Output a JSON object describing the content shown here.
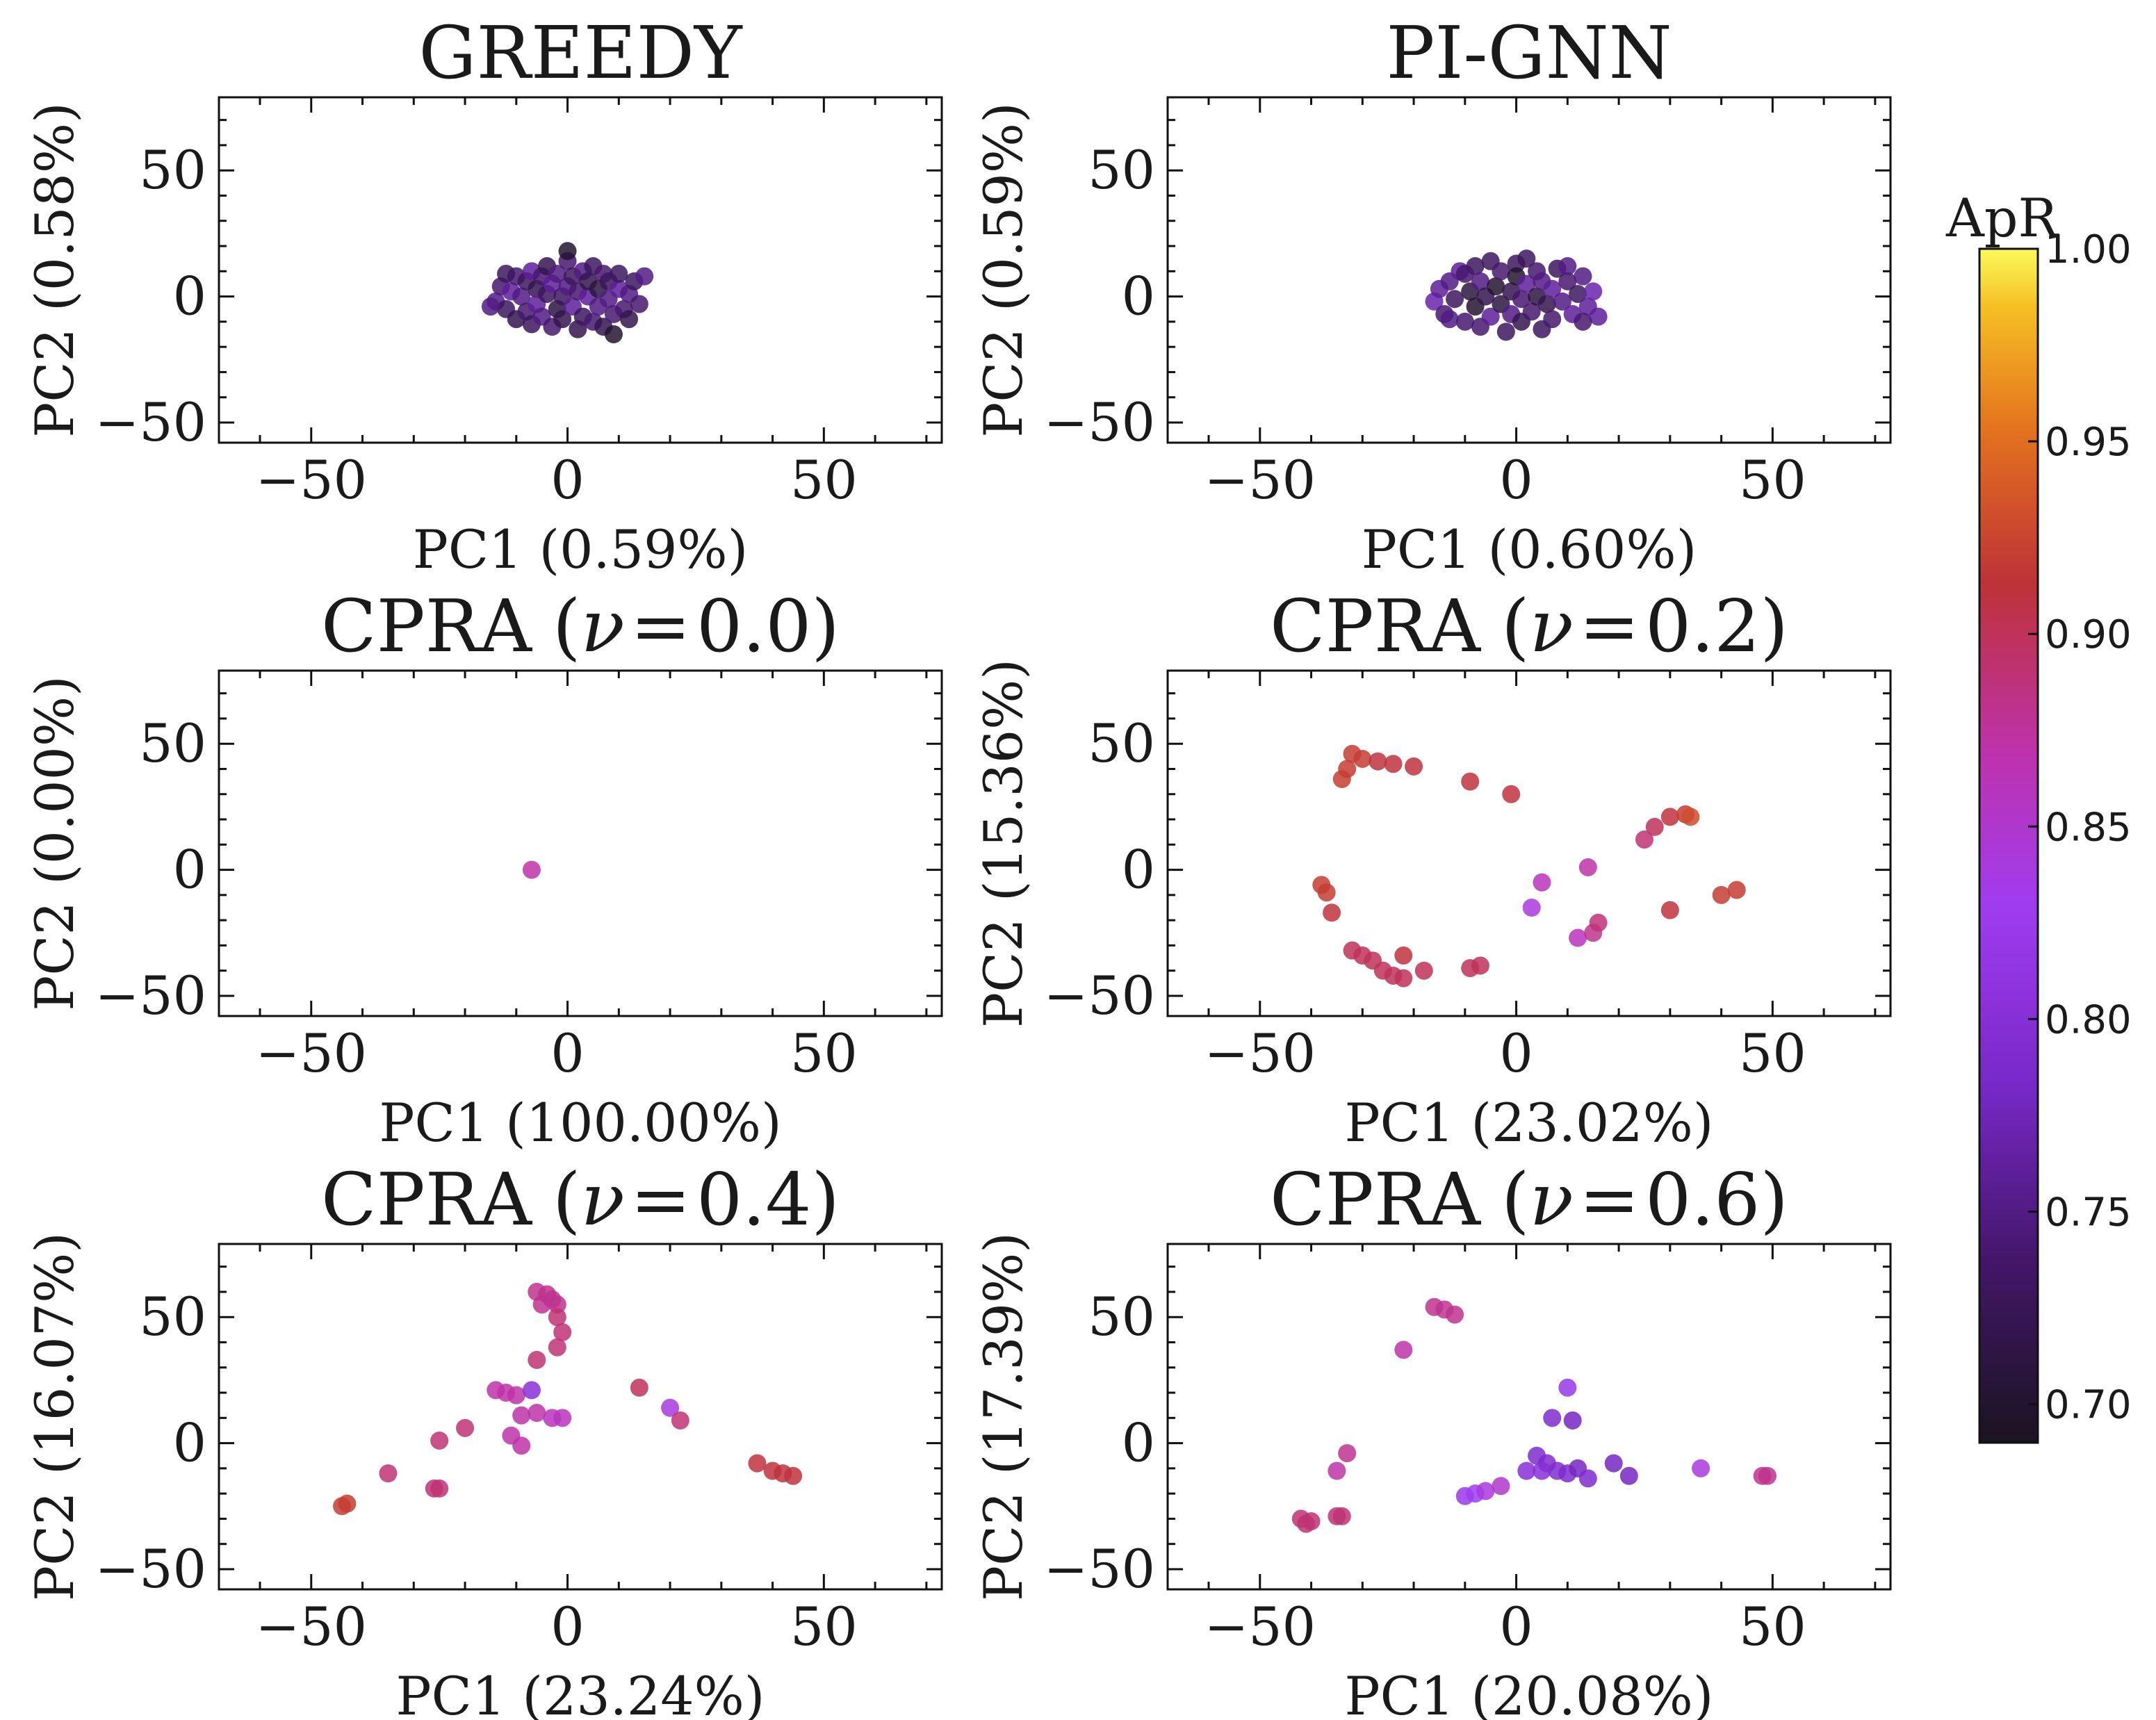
{
  "colors": {
    "background": "#ffffff",
    "axes": "#111111",
    "colormap": "inferno-like (dark purple -> purple -> magenta -> red -> orange -> yellow)"
  },
  "colorbar": {
    "label": "ApR",
    "min": 0.69,
    "max": 1.0,
    "ticks": [
      "1.00",
      "0.95",
      "0.90",
      "0.85",
      "0.80",
      "0.75",
      "0.70"
    ],
    "tick_values": [
      1.0,
      0.95,
      0.9,
      0.85,
      0.8,
      0.75,
      0.7
    ]
  },
  "chart_data": [
    {
      "type": "scatter",
      "title": "GREEDY",
      "xlabel": "PC1 (0.59%)",
      "ylabel": "PC2 (0.58%)",
      "xlim": [
        -68,
        73
      ],
      "ylim": [
        -58,
        79
      ],
      "xticks": [
        -50,
        0,
        50
      ],
      "yticks": [
        -50,
        0,
        50
      ],
      "points": [
        [
          -14,
          -2,
          0.75
        ],
        [
          -13,
          4,
          0.74
        ],
        [
          -12,
          -5,
          0.73
        ],
        [
          -11,
          2,
          0.76
        ],
        [
          -10,
          8,
          0.74
        ],
        [
          -10,
          -9,
          0.72
        ],
        [
          -9,
          0,
          0.75
        ],
        [
          -8,
          6,
          0.73
        ],
        [
          -8,
          -6,
          0.74
        ],
        [
          -7,
          10,
          0.76
        ],
        [
          -7,
          -11,
          0.73
        ],
        [
          -6,
          3,
          0.72
        ],
        [
          -6,
          -3,
          0.76
        ],
        [
          -5,
          8,
          0.74
        ],
        [
          -5,
          -8,
          0.75
        ],
        [
          -4,
          1,
          0.73
        ],
        [
          -4,
          12,
          0.72
        ],
        [
          -3,
          -12,
          0.74
        ],
        [
          -3,
          5,
          0.76
        ],
        [
          -2,
          -5,
          0.71
        ],
        [
          -2,
          9,
          0.75
        ],
        [
          -1,
          0,
          0.73
        ],
        [
          -1,
          -9,
          0.72
        ],
        [
          0,
          14,
          0.74
        ],
        [
          0,
          4,
          0.75
        ],
        [
          0,
          18,
          0.7
        ],
        [
          1,
          -4,
          0.76
        ],
        [
          1,
          8,
          0.73
        ],
        [
          2,
          -13,
          0.72
        ],
        [
          2,
          2,
          0.74
        ],
        [
          3,
          10,
          0.75
        ],
        [
          3,
          -8,
          0.73
        ],
        [
          4,
          0,
          0.76
        ],
        [
          4,
          6,
          0.72
        ],
        [
          5,
          -10,
          0.74
        ],
        [
          5,
          12,
          0.73
        ],
        [
          6,
          -4,
          0.75
        ],
        [
          6,
          3,
          0.71
        ],
        [
          7,
          9,
          0.74
        ],
        [
          7,
          -12,
          0.72
        ],
        [
          8,
          -1,
          0.75
        ],
        [
          8,
          6,
          0.73
        ],
        [
          9,
          -7,
          0.74
        ],
        [
          9,
          -15,
          0.7
        ],
        [
          10,
          3,
          0.76
        ],
        [
          10,
          9,
          0.73
        ],
        [
          11,
          -5,
          0.74
        ],
        [
          12,
          1,
          0.75
        ],
        [
          13,
          6,
          0.73
        ],
        [
          14,
          -3,
          0.74
        ],
        [
          15,
          8,
          0.75
        ],
        [
          -12,
          9,
          0.73
        ],
        [
          -15,
          -4,
          0.75
        ],
        [
          12,
          -9,
          0.72
        ]
      ]
    },
    {
      "type": "scatter",
      "title": "PI-GNN",
      "xlabel": "PC1 (0.60%)",
      "ylabel": "PC2 (0.59%)",
      "xlim": [
        -68,
        73
      ],
      "ylim": [
        -58,
        79
      ],
      "xticks": [
        -50,
        0,
        50
      ],
      "yticks": [
        -50,
        0,
        50
      ],
      "points": [
        [
          -16,
          -2,
          0.77
        ],
        [
          -15,
          3,
          0.76
        ],
        [
          -14,
          -7,
          0.74
        ],
        [
          -13,
          6,
          0.75
        ],
        [
          -12,
          -1,
          0.73
        ],
        [
          -11,
          10,
          0.76
        ],
        [
          -10,
          -10,
          0.74
        ],
        [
          -9,
          2,
          0.71
        ],
        [
          -8,
          12,
          0.73
        ],
        [
          -8,
          -4,
          0.7
        ],
        [
          -7,
          6,
          0.75
        ],
        [
          -7,
          -12,
          0.74
        ],
        [
          -6,
          0,
          0.72
        ],
        [
          -5,
          14,
          0.73
        ],
        [
          -5,
          -8,
          0.76
        ],
        [
          -4,
          4,
          0.7
        ],
        [
          -3,
          -3,
          0.71
        ],
        [
          -3,
          10,
          0.74
        ],
        [
          -2,
          -14,
          0.73
        ],
        [
          -1,
          2,
          0.72
        ],
        [
          -1,
          -7,
          0.75
        ],
        [
          0,
          13,
          0.73
        ],
        [
          0,
          8,
          0.7
        ],
        [
          1,
          -1,
          0.74
        ],
        [
          1,
          -10,
          0.72
        ],
        [
          2,
          5,
          0.76
        ],
        [
          2,
          15,
          0.73
        ],
        [
          3,
          -6,
          0.74
        ],
        [
          4,
          0,
          0.71
        ],
        [
          4,
          10,
          0.74
        ],
        [
          5,
          -13,
          0.73
        ],
        [
          5,
          6,
          0.75
        ],
        [
          6,
          -3,
          0.72
        ],
        [
          7,
          3,
          0.76
        ],
        [
          7,
          -9,
          0.74
        ],
        [
          8,
          11,
          0.73
        ],
        [
          9,
          -2,
          0.75
        ],
        [
          10,
          6,
          0.74
        ],
        [
          11,
          -7,
          0.76
        ],
        [
          12,
          1,
          0.73
        ],
        [
          13,
          8,
          0.75
        ],
        [
          14,
          -4,
          0.76
        ],
        [
          15,
          2,
          0.77
        ],
        [
          16,
          -8,
          0.76
        ],
        [
          -13,
          -9,
          0.75
        ],
        [
          13,
          -10,
          0.74
        ],
        [
          -10,
          9,
          0.74
        ],
        [
          10,
          12,
          0.75
        ]
      ]
    },
    {
      "type": "scatter",
      "title_prefix": "CPRA",
      "title_nu": "0.0",
      "xlabel": "PC1 (100.00%)",
      "ylabel": "PC2 (0.00%)",
      "xlim": [
        -68,
        73
      ],
      "ylim": [
        -58,
        79
      ],
      "xticks": [
        -50,
        0,
        50
      ],
      "yticks": [
        -50,
        0,
        50
      ],
      "points": [
        [
          -7,
          0,
          0.87
        ]
      ]
    },
    {
      "type": "scatter",
      "title_prefix": "CPRA",
      "title_nu": "0.2",
      "xlabel": "PC1 (23.02%)",
      "ylabel": "PC2 (15.36%)",
      "xlim": [
        -68,
        73
      ],
      "ylim": [
        -58,
        79
      ],
      "xticks": [
        -50,
        0,
        50
      ],
      "yticks": [
        -50,
        0,
        50
      ],
      "points": [
        [
          -32,
          46,
          0.92
        ],
        [
          -30,
          44,
          0.92
        ],
        [
          -27,
          43,
          0.91
        ],
        [
          -24,
          42,
          0.91
        ],
        [
          -20,
          41,
          0.91
        ],
        [
          -33,
          40,
          0.92
        ],
        [
          -34,
          36,
          0.92
        ],
        [
          -9,
          35,
          0.91
        ],
        [
          -1,
          30,
          0.91
        ],
        [
          -38,
          -6,
          0.92
        ],
        [
          -37,
          -9,
          0.92
        ],
        [
          -36,
          -17,
          0.91
        ],
        [
          -32,
          -32,
          0.9
        ],
        [
          -30,
          -34,
          0.9
        ],
        [
          -28,
          -36,
          0.9
        ],
        [
          -26,
          -40,
          0.9
        ],
        [
          -24,
          -42,
          0.9
        ],
        [
          -22,
          -43,
          0.9
        ],
        [
          -22,
          -34,
          0.91
        ],
        [
          -18,
          -40,
          0.9
        ],
        [
          -9,
          -39,
          0.9
        ],
        [
          -7,
          -38,
          0.9
        ],
        [
          5,
          -5,
          0.86
        ],
        [
          3,
          -15,
          0.84
        ],
        [
          14,
          1,
          0.87
        ],
        [
          12,
          -27,
          0.86
        ],
        [
          15,
          -25,
          0.88
        ],
        [
          16,
          -21,
          0.89
        ],
        [
          25,
          12,
          0.89
        ],
        [
          27,
          17,
          0.9
        ],
        [
          30,
          21,
          0.91
        ],
        [
          33,
          22,
          0.92
        ],
        [
          34,
          21,
          0.93
        ],
        [
          30,
          -16,
          0.91
        ],
        [
          40,
          -10,
          0.92
        ],
        [
          43,
          -8,
          0.92
        ]
      ]
    },
    {
      "type": "scatter",
      "title_prefix": "CPRA",
      "title_nu": "0.4",
      "xlabel": "PC1 (23.24%)",
      "ylabel": "PC2 (16.07%)",
      "xlim": [
        -68,
        73
      ],
      "ylim": [
        -58,
        79
      ],
      "xticks": [
        -50,
        0,
        50
      ],
      "yticks": [
        -50,
        0,
        50
      ],
      "points": [
        [
          -6,
          60,
          0.88
        ],
        [
          -4,
          59,
          0.88
        ],
        [
          -3,
          57,
          0.88
        ],
        [
          -2,
          55,
          0.88
        ],
        [
          -5,
          55,
          0.88
        ],
        [
          -2,
          50,
          0.89
        ],
        [
          -1,
          44,
          0.89
        ],
        [
          -2,
          38,
          0.89
        ],
        [
          -6,
          33,
          0.89
        ],
        [
          -14,
          21,
          0.87
        ],
        [
          -12,
          20,
          0.87
        ],
        [
          -10,
          19,
          0.87
        ],
        [
          -7,
          21,
          0.8
        ],
        [
          -9,
          11,
          0.87
        ],
        [
          -6,
          12,
          0.87
        ],
        [
          -3,
          10,
          0.86
        ],
        [
          -1,
          10,
          0.86
        ],
        [
          -11,
          3,
          0.87
        ],
        [
          -9,
          -1,
          0.87
        ],
        [
          -20,
          6,
          0.89
        ],
        [
          -25,
          1,
          0.89
        ],
        [
          -35,
          -12,
          0.89
        ],
        [
          -26,
          -18,
          0.89
        ],
        [
          -25,
          -18,
          0.89
        ],
        [
          -44,
          -25,
          0.92
        ],
        [
          -43,
          -24,
          0.92
        ],
        [
          14,
          22,
          0.9
        ],
        [
          20,
          14,
          0.84
        ],
        [
          22,
          9,
          0.89
        ],
        [
          37,
          -8,
          0.91
        ],
        [
          40,
          -11,
          0.91
        ],
        [
          42,
          -12,
          0.91
        ],
        [
          44,
          -13,
          0.91
        ]
      ]
    },
    {
      "type": "scatter",
      "title_prefix": "CPRA",
      "title_nu": "0.6",
      "xlabel": "PC1 (20.08%)",
      "ylabel": "PC2 (17.39%)",
      "xlim": [
        -68,
        73
      ],
      "ylim": [
        -58,
        79
      ],
      "xticks": [
        -50,
        0,
        50
      ],
      "yticks": [
        -50,
        0,
        50
      ],
      "points": [
        [
          -16,
          54,
          0.88
        ],
        [
          -14,
          53,
          0.88
        ],
        [
          -12,
          51,
          0.88
        ],
        [
          -22,
          37,
          0.87
        ],
        [
          -33,
          -4,
          0.88
        ],
        [
          -35,
          -11,
          0.87
        ],
        [
          -35,
          -29,
          0.89
        ],
        [
          -34,
          -29,
          0.89
        ],
        [
          -42,
          -30,
          0.89
        ],
        [
          -41,
          -32,
          0.89
        ],
        [
          -40,
          -31,
          0.89
        ],
        [
          -10,
          -21,
          0.82
        ],
        [
          -8,
          -20,
          0.83
        ],
        [
          -6,
          -19,
          0.84
        ],
        [
          -3,
          -17,
          0.85
        ],
        [
          10,
          22,
          0.82
        ],
        [
          7,
          10,
          0.79
        ],
        [
          11,
          9,
          0.78
        ],
        [
          4,
          -5,
          0.79
        ],
        [
          6,
          -8,
          0.79
        ],
        [
          8,
          -11,
          0.79
        ],
        [
          10,
          -12,
          0.79
        ],
        [
          2,
          -11,
          0.8
        ],
        [
          5,
          -11,
          0.8
        ],
        [
          12,
          -10,
          0.78
        ],
        [
          14,
          -14,
          0.79
        ],
        [
          19,
          -8,
          0.78
        ],
        [
          22,
          -13,
          0.78
        ],
        [
          36,
          -10,
          0.84
        ],
        [
          48,
          -13,
          0.88
        ],
        [
          49,
          -13,
          0.88
        ]
      ]
    }
  ]
}
